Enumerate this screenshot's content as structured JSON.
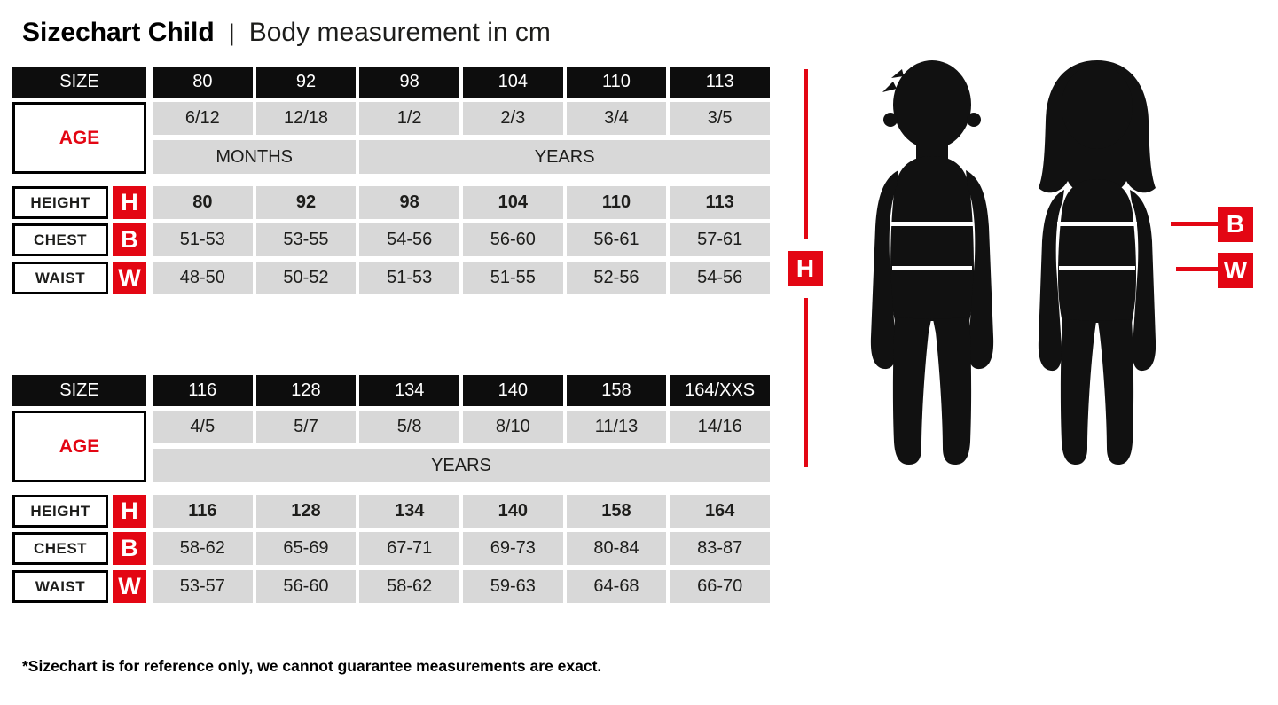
{
  "page": {
    "title": "Sizechart Child",
    "title_separator": "|",
    "subtitle": "Body measurement in cm",
    "footnote": "*Sizechart is for reference only, we cannot guarantee measurements are exact."
  },
  "labels": {
    "size": "SIZE",
    "age": "AGE",
    "height": "HEIGHT",
    "chest": "CHEST",
    "waist": "WAIST",
    "height_abbr": "H",
    "chest_abbr": "B",
    "waist_abbr": "W"
  },
  "figure": {
    "height_label": "H",
    "chest_label": "B",
    "waist_label": "W"
  },
  "colors": {
    "accent_red": "#e30613",
    "cell_gray": "#d8d8d8",
    "cell_black": "#0d0d0d",
    "silhouette_black": "#111111"
  },
  "tables": [
    {
      "sizes": [
        "80",
        "92",
        "98",
        "104",
        "110",
        "113"
      ],
      "ages": [
        "6/12",
        "12/18",
        "1/2",
        "2/3",
        "3/4",
        "3/5"
      ],
      "age_units": [
        {
          "label": "MONTHS",
          "span": 2
        },
        {
          "label": "YEARS",
          "span": 4
        }
      ],
      "height": [
        "80",
        "92",
        "98",
        "104",
        "110",
        "113"
      ],
      "chest": [
        "51-53",
        "53-55",
        "54-56",
        "56-60",
        "56-61",
        "57-61"
      ],
      "waist": [
        "48-50",
        "50-52",
        "51-53",
        "51-55",
        "52-56",
        "54-56"
      ]
    },
    {
      "sizes": [
        "116",
        "128",
        "134",
        "140",
        "158",
        "164/XXS"
      ],
      "ages": [
        "4/5",
        "5/7",
        "5/8",
        "8/10",
        "11/13",
        "14/16"
      ],
      "age_units": [
        {
          "label": "YEARS",
          "span": 6
        }
      ],
      "height": [
        "116",
        "128",
        "134",
        "140",
        "158",
        "164"
      ],
      "chest": [
        "58-62",
        "65-69",
        "67-71",
        "69-73",
        "80-84",
        "83-87"
      ],
      "waist": [
        "53-57",
        "56-60",
        "58-62",
        "59-63",
        "64-68",
        "66-70"
      ]
    }
  ],
  "chart_data": [
    {
      "type": "table",
      "title": "Sizechart Child — Body measurement in cm (sizes 80–113)",
      "columns": [
        "SIZE",
        "80",
        "92",
        "98",
        "104",
        "110",
        "113"
      ],
      "rows": [
        [
          "AGE",
          "6/12 MONTHS",
          "12/18 MONTHS",
          "1/2 YEARS",
          "2/3 YEARS",
          "3/4 YEARS",
          "3/5 YEARS"
        ],
        [
          "HEIGHT (H)",
          "80",
          "92",
          "98",
          "104",
          "110",
          "113"
        ],
        [
          "CHEST (B)",
          "51-53",
          "53-55",
          "54-56",
          "56-60",
          "56-61",
          "57-61"
        ],
        [
          "WAIST (W)",
          "48-50",
          "50-52",
          "51-53",
          "51-55",
          "52-56",
          "54-56"
        ]
      ]
    },
    {
      "type": "table",
      "title": "Sizechart Child — Body measurement in cm (sizes 116–164/XXS)",
      "columns": [
        "SIZE",
        "116",
        "128",
        "134",
        "140",
        "158",
        "164/XXS"
      ],
      "rows": [
        [
          "AGE",
          "4/5 YEARS",
          "5/7 YEARS",
          "5/8 YEARS",
          "8/10 YEARS",
          "11/13 YEARS",
          "14/16 YEARS"
        ],
        [
          "HEIGHT (H)",
          "116",
          "128",
          "134",
          "140",
          "158",
          "164"
        ],
        [
          "CHEST (B)",
          "58-62",
          "65-69",
          "67-71",
          "69-73",
          "80-84",
          "83-87"
        ],
        [
          "WAIST (W)",
          "53-57",
          "56-60",
          "58-62",
          "59-63",
          "64-68",
          "66-70"
        ]
      ]
    }
  ]
}
